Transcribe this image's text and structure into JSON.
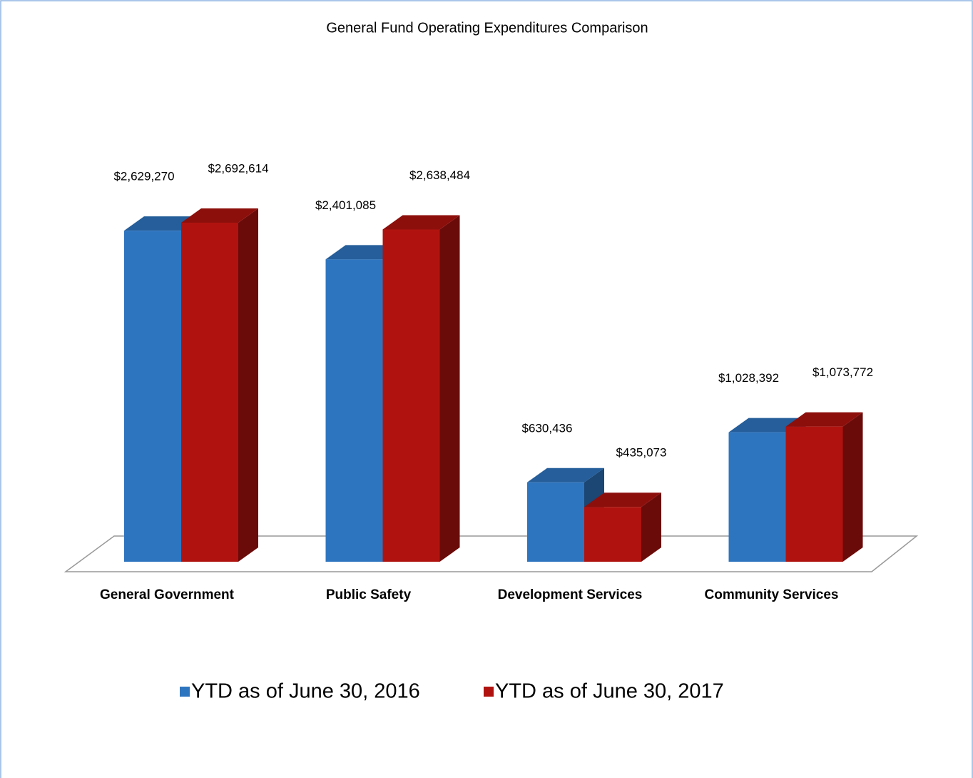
{
  "chart_data": {
    "type": "bar",
    "title": "General Fund Operating Expenditures Comparison",
    "categories": [
      "General Government",
      "Public Safety",
      "Development Services",
      "Community Services"
    ],
    "series": [
      {
        "name": "YTD as of June 30, 2016",
        "color": "#2e75c0",
        "values": [
          2629270,
          2401085,
          630436,
          1028392
        ],
        "value_labels": [
          "$2,629,270",
          "$2,401,085",
          "$630,436",
          "$1,028,392"
        ]
      },
      {
        "name": "YTD as of June 30, 2017",
        "color": "#b0130f",
        "values": [
          2692614,
          2638484,
          435073,
          1073772
        ],
        "value_labels": [
          "$2,692,614",
          "$2,638,484",
          "$435,073",
          "$1,073,772"
        ]
      }
    ],
    "legend": "bottom"
  }
}
